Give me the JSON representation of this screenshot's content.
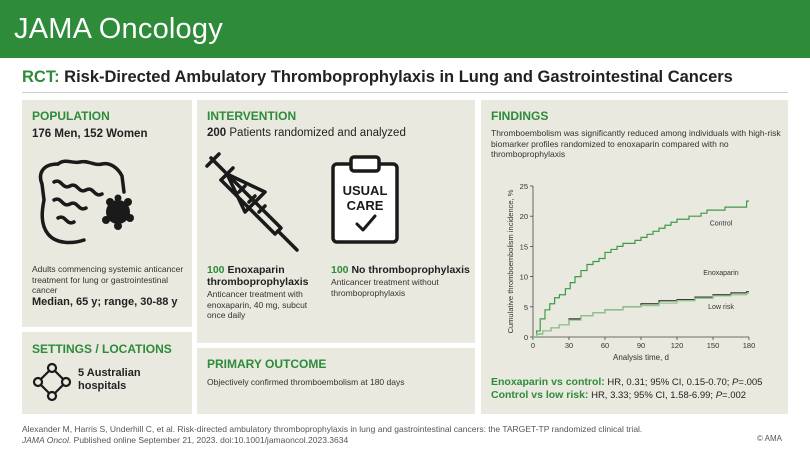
{
  "header": {
    "journal": "JAMA Oncology"
  },
  "title": {
    "prefix": "RCT:",
    "text": "Risk-Directed Ambulatory Thromboprophylaxis in Lung and Gastrointestinal Cancers"
  },
  "population": {
    "heading": "POPULATION",
    "men_women": "176 Men, 152 Women",
    "description": "Adults commencing systemic anticancer treatment for lung or gastrointestinal cancer",
    "age": "Median, 65 y; range, 30-88 y"
  },
  "settings": {
    "heading": "SETTINGS / LOCATIONS",
    "num": "5",
    "text": "Australian hospitals"
  },
  "intervention": {
    "heading": "INTERVENTION",
    "num": "200",
    "summary": "Patients randomized and analyzed",
    "usual_care_line1": "USUAL",
    "usual_care_line2": "CARE",
    "arm1": {
      "num": "100",
      "name_line1": "Enoxaparin",
      "name_line2": "thromboprophylaxis",
      "desc": "Anticancer treatment with enoxaparin, 40 mg, subcut once daily"
    },
    "arm2": {
      "num": "100",
      "name": "No thromboprophylaxis",
      "desc": "Anticancer treatment without thromboprophylaxis"
    }
  },
  "outcome": {
    "heading": "PRIMARY OUTCOME",
    "text": "Objectively confirmed thromboembolism at 180 days"
  },
  "findings": {
    "heading": "FINDINGS",
    "text": "Thromboembolism was significantly reduced among individuals with high-risk biomarker profiles randomized to enoxaparin compared with no thromboprophylaxis",
    "res1_label": "Enoxaparin vs control:",
    "res1_pre": "HR, 0.31; 95% CI, 0.15-0.70;",
    "res1_p": "P",
    "res1_post": "=.005",
    "res2_label": "Control vs low risk:",
    "res2_pre": "HR, 3.33; 95% CI, 1.58-6.99;",
    "res2_p": "P",
    "res2_post": "=.002"
  },
  "chart_data": {
    "type": "line",
    "xlabel": "Analysis time, d",
    "ylabel": "Cumulative thromboembolism incidence, %",
    "xlim": [
      0,
      180
    ],
    "ylim": [
      0,
      25
    ],
    "xticks": [
      0,
      30,
      60,
      90,
      120,
      150,
      180
    ],
    "yticks": [
      0,
      5,
      10,
      15,
      20,
      25
    ],
    "series": [
      {
        "name": "Control",
        "color": "#3f9a48",
        "step": true,
        "x": [
          0,
          3,
          6,
          10,
          14,
          18,
          22,
          27,
          31,
          35,
          40,
          45,
          50,
          55,
          60,
          65,
          70,
          75,
          80,
          85,
          90,
          95,
          100,
          105,
          110,
          115,
          120,
          125,
          130,
          135,
          140,
          145,
          150,
          155,
          160,
          170,
          178
        ],
        "y": [
          0,
          1,
          3,
          4.5,
          5.5,
          6.5,
          7,
          8,
          9,
          10,
          11,
          12,
          12.5,
          13,
          14,
          14.5,
          15,
          15.5,
          15.5,
          16,
          16.5,
          17,
          17.5,
          18,
          18.5,
          19,
          19.5,
          19.5,
          20,
          20,
          20.5,
          21,
          21,
          21,
          21.5,
          21.5,
          22.5
        ]
      },
      {
        "name": "Enoxaparin",
        "color": "#3a3a3a",
        "step": true,
        "x": [
          0,
          3,
          8,
          15,
          22,
          30,
          40,
          50,
          60,
          75,
          90,
          105,
          120,
          135,
          150,
          165,
          178
        ],
        "y": [
          0,
          0.5,
          1,
          1.5,
          2,
          3,
          3.5,
          4,
          4.5,
          5,
          5.5,
          6,
          6.2,
          6.6,
          7,
          7.3,
          7.5
        ]
      },
      {
        "name": "Low risk",
        "color": "#8fc98f",
        "step": true,
        "x": [
          0,
          3,
          8,
          15,
          22,
          30,
          40,
          50,
          60,
          75,
          90,
          105,
          120,
          135,
          150,
          165,
          178
        ],
        "y": [
          0,
          0.5,
          1,
          1.5,
          2,
          2.8,
          3.5,
          4,
          4.5,
          5,
          5.2,
          5.6,
          6,
          6.4,
          6.8,
          7,
          7.2
        ]
      }
    ]
  },
  "citation": {
    "line1": "Alexander M, Harris S, Underhill C, et al. Risk-directed ambulatory thromboprophylaxis in lung and gastrointestinal cancers: the TARGET-TP randomized clinical trial.",
    "jo": "JAMA Oncol",
    "line2": ". Published online September 21, 2023. doi:10.1001/jamaoncol.2023.3634"
  },
  "copyright": "© AMA",
  "colors": {
    "brand": "#2e8b3a",
    "panel": "#e9e9df"
  }
}
